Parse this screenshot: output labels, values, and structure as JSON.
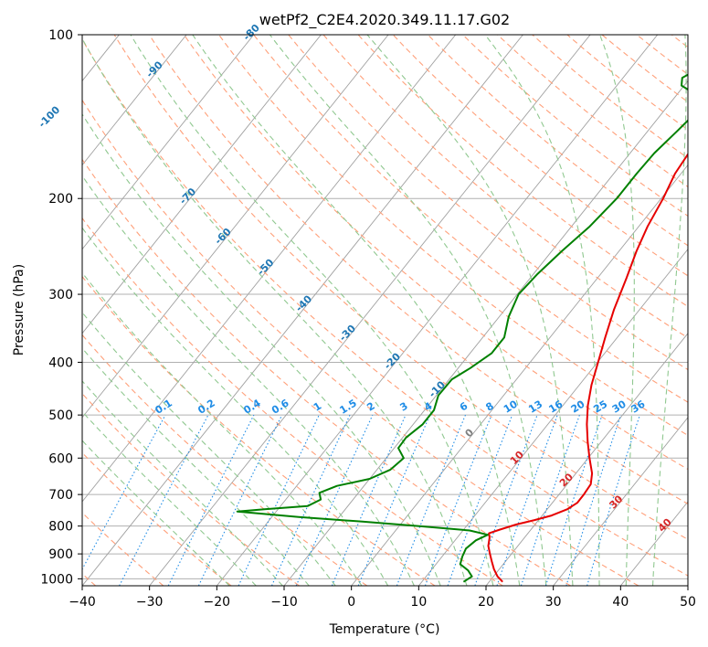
{
  "chart_data": {
    "type": "skew-t",
    "title": "wetPf2_C2E4.2020.349.11.17.G02",
    "xlabel": "Temperature (°C)",
    "ylabel": "Pressure (hPa)",
    "xlim": [
      -40,
      50
    ],
    "ylim_hPa": [
      1030,
      100
    ],
    "y_scale": "log",
    "grid": true,
    "x_ticks": [
      "−40",
      "−30",
      "−20",
      "−10",
      "0",
      "10",
      "20",
      "30",
      "40",
      "50"
    ],
    "y_ticks": [
      "100",
      "200",
      "300",
      "400",
      "500",
      "600",
      "700",
      "800",
      "900",
      "1000"
    ],
    "isotherm_labels": [
      "-100",
      "-90",
      "-80",
      "-70",
      "-60",
      "-50",
      "-40",
      "-30",
      "-20",
      "-10",
      "0",
      "10",
      "20",
      "30",
      "40"
    ],
    "mixing_ratio_labels": [
      "0.1",
      "0.2",
      "0.4",
      "0.6",
      "1",
      "1.5",
      "2",
      "3",
      "4",
      "6",
      "8",
      "10",
      "13",
      "16",
      "20",
      "25",
      "30",
      "36"
    ],
    "colors": {
      "temperature": "#e60000",
      "dewpoint": "#008000",
      "isotherm": "#a0a0a0",
      "dry_adiabat": "#ffa07a",
      "moist_adiabat": "#90c890",
      "mixing_ratio": "#1e8ce6",
      "cold_label": "#1f77b4",
      "warm_label": "#d62728",
      "zero_label": "#808080"
    },
    "series": [
      {
        "name": "temperature",
        "points": [
          {
            "p": 1013,
            "t": 22.0
          },
          {
            "p": 990,
            "t": 20.6
          },
          {
            "p": 960,
            "t": 19.2
          },
          {
            "p": 930,
            "t": 18.0
          },
          {
            "p": 900,
            "t": 16.8
          },
          {
            "p": 870,
            "t": 15.6
          },
          {
            "p": 840,
            "t": 14.8
          },
          {
            "p": 825,
            "t": 14.2
          },
          {
            "p": 812,
            "t": 15.4
          },
          {
            "p": 795,
            "t": 17.2
          },
          {
            "p": 780,
            "t": 19.4
          },
          {
            "p": 765,
            "t": 21.4
          },
          {
            "p": 745,
            "t": 23.0
          },
          {
            "p": 725,
            "t": 23.7
          },
          {
            "p": 700,
            "t": 23.7
          },
          {
            "p": 670,
            "t": 23.5
          },
          {
            "p": 640,
            "t": 22.4
          },
          {
            "p": 600,
            "t": 20.2
          },
          {
            "p": 560,
            "t": 18.0
          },
          {
            "p": 520,
            "t": 15.8
          },
          {
            "p": 480,
            "t": 13.7
          },
          {
            "p": 440,
            "t": 11.8
          },
          {
            "p": 400,
            "t": 10.1
          },
          {
            "p": 360,
            "t": 8.2
          },
          {
            "p": 320,
            "t": 6.2
          },
          {
            "p": 280,
            "t": 4.3
          },
          {
            "p": 250,
            "t": 2.6
          },
          {
            "p": 225,
            "t": 1.3
          },
          {
            "p": 200,
            "t": 0.3
          },
          {
            "p": 180,
            "t": -0.9
          },
          {
            "p": 165,
            "t": -1.3
          },
          {
            "p": 155,
            "t": -0.8
          },
          {
            "p": 148,
            "t": 1.2
          },
          {
            "p": 140,
            "t": 4.8
          },
          {
            "p": 133,
            "t": 9.0
          },
          {
            "p": 125,
            "t": 11.4
          },
          {
            "p": 118,
            "t": 10.7
          },
          {
            "p": 110,
            "t": 10.9
          },
          {
            "p": 104,
            "t": 11.9
          },
          {
            "p": 100,
            "t": 11.8
          }
        ]
      },
      {
        "name": "dewpoint",
        "points": [
          {
            "p": 1013,
            "t": 16.2
          },
          {
            "p": 990,
            "t": 16.8
          },
          {
            "p": 965,
            "t": 15.5
          },
          {
            "p": 940,
            "t": 13.6
          },
          {
            "p": 910,
            "t": 13.0
          },
          {
            "p": 880,
            "t": 12.6
          },
          {
            "p": 850,
            "t": 13.1
          },
          {
            "p": 830,
            "t": 14.2
          },
          {
            "p": 815,
            "t": 11.0
          },
          {
            "p": 800,
            "t": 3.0
          },
          {
            "p": 785,
            "t": -6.0
          },
          {
            "p": 770,
            "t": -16.0
          },
          {
            "p": 752,
            "t": -25.8
          },
          {
            "p": 745,
            "t": -22.0
          },
          {
            "p": 735,
            "t": -16.0
          },
          {
            "p": 715,
            "t": -14.8
          },
          {
            "p": 695,
            "t": -15.8
          },
          {
            "p": 675,
            "t": -14.0
          },
          {
            "p": 655,
            "t": -10.0
          },
          {
            "p": 630,
            "t": -8.0
          },
          {
            "p": 600,
            "t": -7.4
          },
          {
            "p": 575,
            "t": -9.4
          },
          {
            "p": 550,
            "t": -9.5
          },
          {
            "p": 520,
            "t": -8.6
          },
          {
            "p": 490,
            "t": -8.6
          },
          {
            "p": 460,
            "t": -9.7
          },
          {
            "p": 430,
            "t": -9.6
          },
          {
            "p": 410,
            "t": -8.2
          },
          {
            "p": 385,
            "t": -6.8
          },
          {
            "p": 360,
            "t": -6.8
          },
          {
            "p": 330,
            "t": -8.6
          },
          {
            "p": 300,
            "t": -9.8
          },
          {
            "p": 275,
            "t": -9.4
          },
          {
            "p": 250,
            "t": -8.5
          },
          {
            "p": 225,
            "t": -7.3
          },
          {
            "p": 200,
            "t": -6.6
          },
          {
            "p": 180,
            "t": -6.6
          },
          {
            "p": 165,
            "t": -6.4
          },
          {
            "p": 150,
            "t": -5.6
          },
          {
            "p": 138,
            "t": -5.0
          },
          {
            "p": 130,
            "t": -6.4
          },
          {
            "p": 124,
            "t": -10.4
          },
          {
            "p": 120,
            "t": -11.2
          },
          {
            "p": 116,
            "t": -10.0
          },
          {
            "p": 112,
            "t": -7.0
          },
          {
            "p": 106,
            "t": -3.0
          },
          {
            "p": 100,
            "t": -1.1
          }
        ]
      }
    ]
  }
}
